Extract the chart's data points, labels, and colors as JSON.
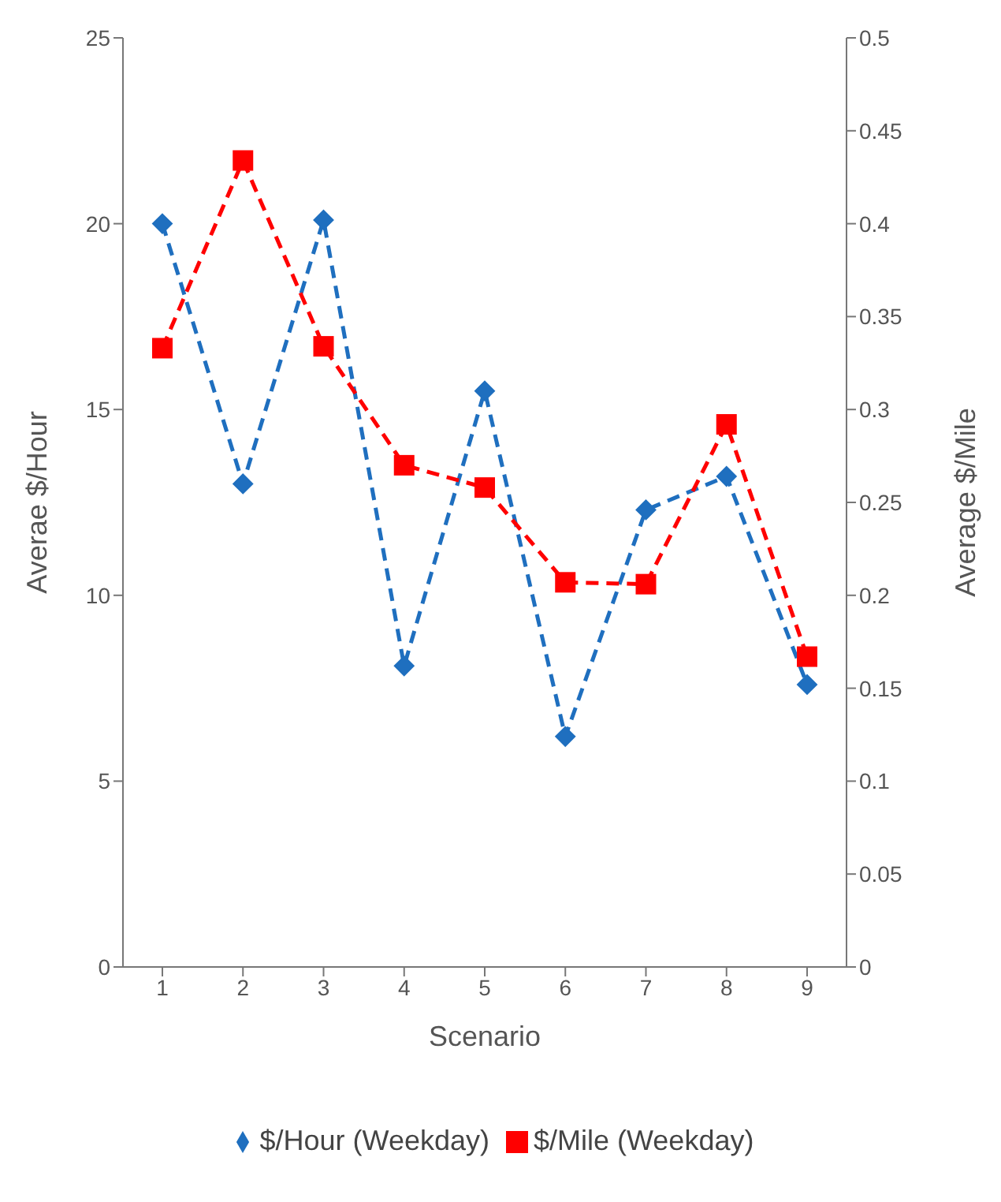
{
  "chart_data": {
    "type": "line",
    "xlabel": "Scenario",
    "ylabel": "Averae $/Hour",
    "y2label": "Average $/Mile",
    "categories": [
      "1",
      "2",
      "3",
      "4",
      "5",
      "6",
      "7",
      "8",
      "9"
    ],
    "series": [
      {
        "name": "$/Hour (Weekday)",
        "color": "#1f6fbf",
        "marker": "diamond",
        "values": [
          20.0,
          13.0,
          20.1,
          8.1,
          15.5,
          6.2,
          12.3,
          13.2,
          7.6
        ]
      },
      {
        "name": "$/Mile (Weekday)",
        "color": "#ff0000",
        "marker": "square",
        "axis": "y2",
        "values": [
          0.333,
          0.434,
          0.334,
          0.27,
          0.258,
          0.207,
          0.206,
          0.292,
          0.167
        ]
      }
    ],
    "ylim": [
      0,
      25
    ],
    "yticks": [
      0,
      5,
      10,
      15,
      20,
      25
    ],
    "y2lim": [
      0,
      0.5
    ],
    "y2ticks": [
      0,
      0.05,
      0.1,
      0.15,
      0.2,
      0.25,
      0.3,
      0.35,
      0.4,
      0.45,
      0.5
    ],
    "line_style": "dashed",
    "grid": false,
    "legend": "bottom"
  }
}
